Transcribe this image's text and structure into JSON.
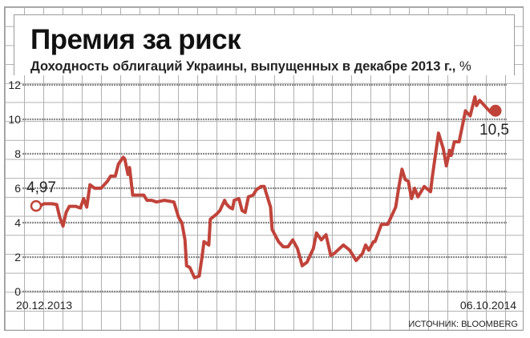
{
  "title": "Премия за риск",
  "subtitle": "Доходность облигаций Украины, выпущенных в декабре 2013 г.,",
  "unit": "%",
  "source": "ИСТОЧНИК: BLOOMBERG",
  "colors": {
    "line": "#c0433a",
    "grid": "#b0b0b0",
    "dash": "#8c8c8c"
  },
  "chart_data": {
    "type": "line",
    "title": "Премия за риск",
    "subtitle": "Доходность облигаций Украины, выпущенных в декабре 2013 г., %",
    "xlabel": "",
    "ylabel": "%",
    "ylim": [
      0,
      12
    ],
    "yticks": [
      "0",
      "2",
      "4",
      "6",
      "8",
      "10",
      "12"
    ],
    "x_start_label": "20.12.2013",
    "x_end_label": "06.10.2014",
    "x_unit": "days since 20.12.2013",
    "xlim": [
      0,
      290
    ],
    "start_annotation": "4,97",
    "end_annotation": "10,5",
    "series": [
      {
        "name": "Доходность",
        "x": [
          0,
          3,
          5,
          10,
          13,
          15,
          17,
          19,
          21,
          25,
          28,
          30,
          32,
          34,
          37,
          41,
          45,
          47,
          50,
          52,
          55,
          56,
          58,
          59,
          61,
          68,
          70,
          73,
          76,
          81,
          87,
          90,
          92,
          94,
          95,
          97,
          100,
          103,
          105,
          106,
          109,
          110,
          114,
          116,
          119,
          120,
          122,
          124,
          125,
          128,
          130,
          132,
          134,
          137,
          139,
          142,
          144,
          148,
          149,
          153,
          156,
          159,
          162,
          165,
          168,
          171,
          175,
          177,
          180,
          183,
          186,
          188,
          194,
          198,
          202,
          206,
          208,
          210,
          213,
          214,
          218,
          222,
          227,
          229,
          231,
          233,
          235,
          237,
          239,
          241,
          245,
          249,
          250,
          254,
          257,
          259,
          261,
          262,
          264,
          267,
          271,
          274,
          277,
          278,
          280,
          283,
          287,
          290
        ],
        "values": [
          4.97,
          5.0,
          5.1,
          5.1,
          5.05,
          4.3,
          3.8,
          4.6,
          4.95,
          4.95,
          4.85,
          5.4,
          4.9,
          6.2,
          6.0,
          6.0,
          6.4,
          6.7,
          6.7,
          7.4,
          7.8,
          7.7,
          6.8,
          7.2,
          5.6,
          5.6,
          5.3,
          5.3,
          5.2,
          5.3,
          5.2,
          4.3,
          4.0,
          3.0,
          1.5,
          1.4,
          0.8,
          0.9,
          2.2,
          2.9,
          2.7,
          4.2,
          4.5,
          4.7,
          5.3,
          5.1,
          4.9,
          4.8,
          5.3,
          5.4,
          4.7,
          4.6,
          5.5,
          5.6,
          5.9,
          6.1,
          6.1,
          4.9,
          3.6,
          2.9,
          2.6,
          2.6,
          3.0,
          2.5,
          1.5,
          1.7,
          2.5,
          3.4,
          3.0,
          3.3,
          2.1,
          2.2,
          2.7,
          2.4,
          1.8,
          2.2,
          2.7,
          2.4,
          2.9,
          2.9,
          3.9,
          3.9,
          4.9,
          6.1,
          7.1,
          6.5,
          6.4,
          5.4,
          6.0,
          5.5,
          6.1,
          5.8,
          6.6,
          9.2,
          8.3,
          7.3,
          8.2,
          7.9,
          8.7,
          8.7,
          10.5,
          10.2,
          11.3,
          10.8,
          11.1,
          10.8,
          10.4,
          10.5
        ]
      }
    ]
  }
}
